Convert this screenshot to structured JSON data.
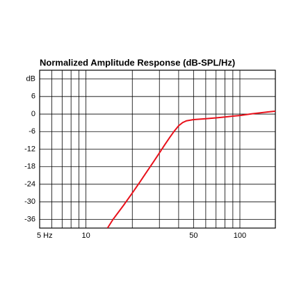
{
  "chart_data": {
    "type": "line",
    "title": "Normalized Amplitude Response (dB-SPL/Hz)",
    "x": [
      13.8,
      15,
      17.5,
      20,
      22.5,
      25,
      27.5,
      30,
      32.5,
      35,
      37.5,
      40,
      42.5,
      45,
      50,
      60,
      70,
      80,
      90,
      100,
      120,
      150,
      170
    ],
    "values": [
      -39,
      -36,
      -31.3,
      -27,
      -23.1,
      -19.5,
      -16.3,
      -13.3,
      -10.5,
      -8,
      -5.8,
      -4,
      -2.9,
      -2.3,
      -1.9,
      -1.6,
      -1.3,
      -1.0,
      -0.7,
      -0.5,
      0.1,
      0.7,
      1.0
    ],
    "color": "#e8101a",
    "xlim": [
      5,
      170
    ],
    "xscale": "log",
    "xticks": [
      {
        "value": 5,
        "label": "5 Hz"
      },
      10,
      50,
      100
    ],
    "xminor": [
      6,
      7,
      8,
      9,
      20,
      30,
      40,
      60,
      70,
      80,
      90
    ],
    "ylim": [
      -39,
      15
    ],
    "yticks": [
      {
        "value": 12,
        "label": "dB"
      },
      6,
      0,
      -6,
      -12,
      -18,
      -24,
      -30,
      -36
    ],
    "grid": true
  }
}
